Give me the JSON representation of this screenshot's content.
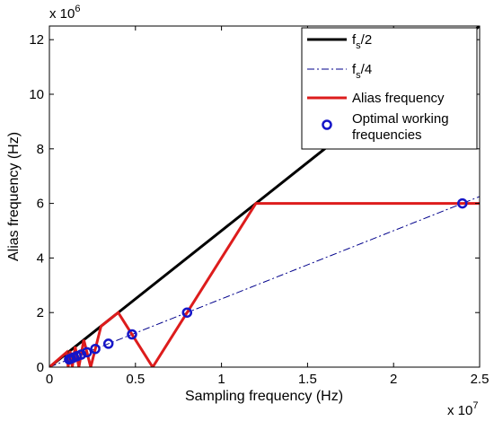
{
  "chart_data": {
    "type": "line",
    "xlabel": "Sampling frequency (Hz)",
    "ylabel": "Alias frequency (Hz)",
    "x_multiplier": "x 10",
    "x_exponent": "7",
    "y_multiplier": "x 10",
    "y_exponent": "6",
    "xlim": [
      0,
      25000000
    ],
    "ylim": [
      0,
      12500000
    ],
    "xticks": [
      0,
      5000000,
      10000000,
      15000000,
      20000000,
      25000000
    ],
    "xtick_labels": [
      "0",
      "0.5",
      "1",
      "1.5",
      "2",
      "2.5"
    ],
    "yticks": [
      0,
      2000000,
      4000000,
      6000000,
      8000000,
      10000000,
      12000000
    ],
    "ytick_labels": [
      "0",
      "2",
      "4",
      "6",
      "8",
      "10",
      "12"
    ],
    "grid": false,
    "legend_position": "top-right",
    "series": [
      {
        "name": "f_s/2",
        "name_main": "f",
        "name_sub": "s",
        "name_tail": "/2",
        "style": "solid",
        "color": "#000000",
        "x": [
          0,
          25000000
        ],
        "y": [
          0,
          12500000
        ]
      },
      {
        "name": "f_s/4",
        "name_main": "f",
        "name_sub": "s",
        "name_tail": "/4",
        "style": "dashdot",
        "color": "#00008b",
        "x": [
          0,
          25000000
        ],
        "y": [
          0,
          6250000
        ]
      },
      {
        "name": "Alias frequency",
        "style": "solid",
        "color": "#dd1c1c",
        "x": [
          0,
          1000000,
          1090909,
          1200000,
          1333333,
          1500000,
          1714286,
          2000000,
          2400000,
          3000000,
          4000000,
          6000000,
          12000000,
          25000000
        ],
        "y": [
          0,
          545000,
          0,
          600000,
          0,
          750000,
          0,
          1000000,
          0,
          1500000,
          2000000,
          0,
          6000000,
          6000000
        ]
      },
      {
        "name": "Optimal working frequencies",
        "name_line1": "Optimal working",
        "name_line2": "frequencies",
        "style": "markers",
        "color": "#1515c8",
        "x": [
          24000000,
          8000000,
          4800000,
          3428571,
          2666667,
          2181818,
          1846154,
          1600000,
          1411765,
          1263158,
          1142857
        ],
        "y": [
          6000000,
          2000000,
          1200000,
          857143,
          666667,
          545455,
          461538,
          400000,
          352941,
          315789,
          285714
        ]
      }
    ]
  }
}
